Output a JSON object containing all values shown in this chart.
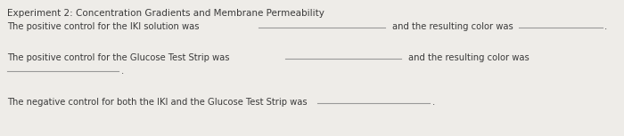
{
  "title": "Experiment 2: Concentration Gradients and Membrane Permeability",
  "line1_text1": "The positive control for the IKI solution was",
  "line1_text2": "and the resulting color was",
  "line2_text1": "The positive control for the Glucose Test Strip was",
  "line2_text2": "and the resulting color was",
  "line3_text1": "The negative control for both the IKI and the Glucose Test Strip was",
  "background_color": "#eeece8",
  "text_color": "#3a3a3a",
  "line_color": "#999999",
  "title_fontsize": 7.5,
  "body_fontsize": 7.2,
  "fig_width": 7.0,
  "fig_height": 1.53,
  "dpi": 100
}
